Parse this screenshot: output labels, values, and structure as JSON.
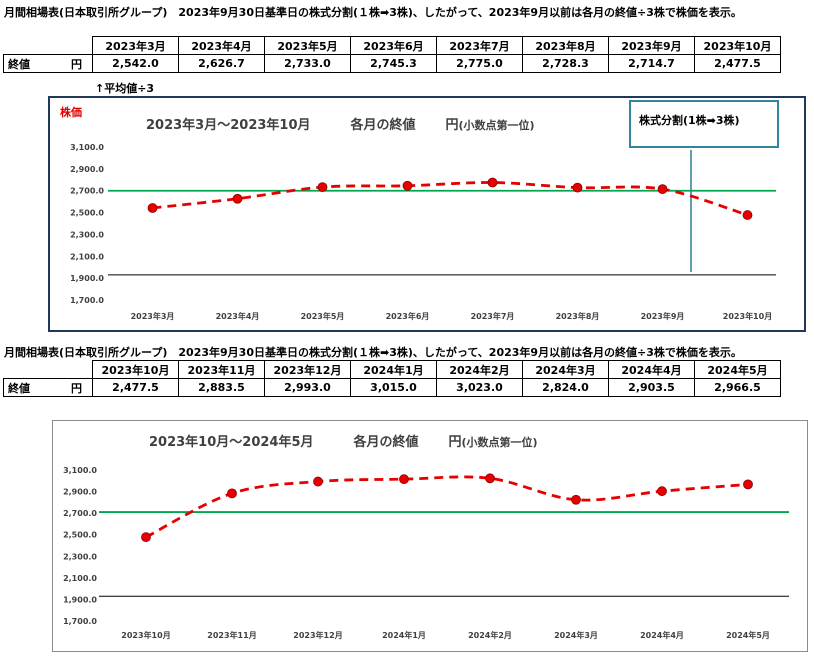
{
  "header_1": "月間相場表(日本取引所グループ)　2023年9月30日基準日の株式分割(１株➡3株)、したがって、2023年9月以前は各月の終値÷3株で株価を表示。",
  "header_2": "月間相場表(日本取引所グループ)　2023年9月30日基準日の株式分割(１株➡3株)、したがって、2023年9月以前は各月の終値÷3株で株価を表示。",
  "table_1": {
    "row_label": "終値",
    "unit": "円",
    "months": [
      "2023年3月",
      "2023年4月",
      "2023年5月",
      "2023年6月",
      "2023年7月",
      "2023年8月",
      "2023年9月",
      "2023年10月"
    ],
    "values": [
      "2,542.0",
      "2,626.7",
      "2,733.0",
      "2,745.3",
      "2,775.0",
      "2,728.3",
      "2,714.7",
      "2,477.5"
    ]
  },
  "table_2": {
    "row_label": "終値",
    "unit": "円",
    "months": [
      "2023年10月",
      "2023年11月",
      "2023年12月",
      "2024年1月",
      "2024年2月",
      "2024年3月",
      "2024年4月",
      "2024年5月"
    ],
    "values": [
      "2,477.5",
      "2,883.5",
      "2,993.0",
      "3,015.0",
      "3,023.0",
      "2,824.0",
      "2,903.5",
      "2,966.5"
    ]
  },
  "note": "↑平均値÷3",
  "chart_1_ylabel": "株価",
  "chart_1_callout": "株式分割(1株➡3株)",
  "chart_data": [
    {
      "type": "line",
      "title": "2023年3月～2023年10月　　各月の終値　　円(小数点第一位)",
      "title_main": "2023年3月～2023年10月",
      "title_mid": "各月の終値",
      "title_unit": "円",
      "title_unit_small": "(小数点第一位)",
      "categories": [
        "2023年3月",
        "2023年4月",
        "2023年5月",
        "2023年6月",
        "2023年7月",
        "2023年8月",
        "2023年9月",
        "2023年10月"
      ],
      "series": [
        {
          "values": [
            2542.0,
            2626.7,
            2733.0,
            2745.3,
            2775.0,
            2728.3,
            2714.7,
            2477.5
          ],
          "color": "#e60000",
          "style": "dashed",
          "markers": true
        }
      ],
      "reference_lines": [
        {
          "value": 2700,
          "color": "#00a650"
        },
        {
          "value": 1930,
          "color": "#000000"
        }
      ],
      "yticks": [
        "3,100.0",
        "2,900.0",
        "2,700.0",
        "2,500.0",
        "2,300.0",
        "2,100.0",
        "1,900.0",
        "1,700.0"
      ],
      "ylim": [
        1700,
        3100
      ],
      "grid": false
    },
    {
      "type": "line",
      "title": "2023年10月～2024年5月　　各月の終値　　円(小数点第一位)",
      "title_main": "2023年10月～2024年5月",
      "title_mid": "各月の終値",
      "title_unit": "円",
      "title_unit_small": "(小数点第一位)",
      "categories": [
        "2023年10月",
        "2023年11月",
        "2023年12月",
        "2024年1月",
        "2024年2月",
        "2024年3月",
        "2024年4月",
        "2024年5月"
      ],
      "series": [
        {
          "values": [
            2477.5,
            2883.5,
            2993.0,
            3015.0,
            3023.0,
            2824.0,
            2903.5,
            2966.5
          ],
          "color": "#e60000",
          "style": "dashed",
          "markers": true
        }
      ],
      "reference_lines": [
        {
          "value": 2710,
          "color": "#00a650"
        },
        {
          "value": 1930,
          "color": "#000000"
        }
      ],
      "yticks": [
        "3,100.0",
        "2,900.0",
        "2,700.0",
        "2,500.0",
        "2,300.0",
        "2,100.0",
        "1,900.0",
        "1,700.0"
      ],
      "ylim": [
        1700,
        3100
      ],
      "grid": false
    }
  ]
}
